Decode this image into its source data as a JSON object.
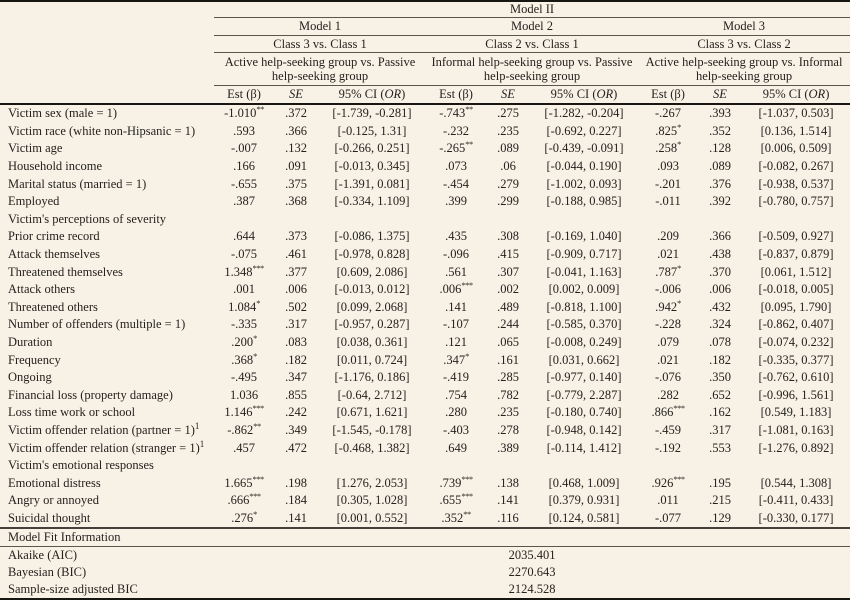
{
  "colors": {
    "background": "#f8f2e6",
    "text": "#24221f",
    "rule_heavy": "#181611",
    "rule_light": "#5a564c"
  },
  "table": {
    "title": "Model II",
    "models": [
      {
        "name": "Model 1",
        "class_comparison": "Class 3 vs. Class 1",
        "group_comparison": "Active help-seeking group vs. Passive help-seeking group"
      },
      {
        "name": "Model 2",
        "class_comparison": "Class 2 vs. Class 1",
        "group_comparison": "Informal help-seeking group vs. Passive help-seeking group"
      },
      {
        "name": "Model 3",
        "class_comparison": "Class 3 vs. Class 2",
        "group_comparison": "Active help-seeking group vs. Informal help-seeking group"
      }
    ],
    "col_headers": {
      "est": "Est (β)",
      "se": "SE",
      "ci_pre": "95% CI (",
      "ci_or": "OR",
      "ci_post": ")"
    },
    "rows": [
      {
        "label": "Victim sex (male = 1)",
        "cells": [
          [
            "-1.010",
            "**",
            ".372",
            "[-1.739, -0.281]"
          ],
          [
            "-.743",
            "**",
            ".275",
            "[-1.282, -0.204]"
          ],
          [
            "-.267",
            "",
            ".393",
            "[-1.037, 0.503]"
          ]
        ]
      },
      {
        "label": "Victim race (white non-Hipsanic = 1)",
        "cells": [
          [
            ".593",
            "",
            ".366",
            "[-0.125, 1.31]"
          ],
          [
            "-.232",
            "",
            ".235",
            "[-0.692, 0.227]"
          ],
          [
            ".825",
            "*",
            ".352",
            "[0.136, 1.514]"
          ]
        ]
      },
      {
        "label": "Victim age",
        "cells": [
          [
            "-.007",
            "",
            ".132",
            "[-0.266, 0.251]"
          ],
          [
            "-.265",
            "**",
            ".089",
            "[-0.439, -0.091]"
          ],
          [
            ".258",
            "*",
            ".128",
            "[0.006, 0.509]"
          ]
        ]
      },
      {
        "label": "Household income",
        "cells": [
          [
            ".166",
            "",
            ".091",
            "[-0.013, 0.345]"
          ],
          [
            ".073",
            "",
            ".06",
            "[-0.044, 0.190]"
          ],
          [
            ".093",
            "",
            ".089",
            "[-0.082, 0.267]"
          ]
        ]
      },
      {
        "label": "Marital status (married = 1)",
        "cells": [
          [
            "-.655",
            "",
            ".375",
            "[-1.391, 0.081]"
          ],
          [
            "-.454",
            "",
            ".279",
            "[-1.002, 0.093]"
          ],
          [
            "-.201",
            "",
            ".376",
            "[-0.938, 0.537]"
          ]
        ]
      },
      {
        "label": "Employed",
        "cells": [
          [
            ".387",
            "",
            ".368",
            "[-0.334, 1.109]"
          ],
          [
            ".399",
            "",
            ".299",
            "[-0.188, 0.985]"
          ],
          [
            "-.011",
            "",
            ".392",
            "[-0.780, 0.757]"
          ]
        ]
      },
      {
        "section": "Victim's perceptions of severity"
      },
      {
        "label": "Prior crime record",
        "cells": [
          [
            ".644",
            "",
            ".373",
            "[-0.086, 1.375]"
          ],
          [
            ".435",
            "",
            ".308",
            "[-0.169, 1.040]"
          ],
          [
            ".209",
            "",
            ".366",
            "[-0.509, 0.927]"
          ]
        ]
      },
      {
        "label": "Attack themselves",
        "cells": [
          [
            "-.075",
            "",
            ".461",
            "[-0.978, 0.828]"
          ],
          [
            "-.096",
            "",
            ".415",
            "[-0.909, 0.717]"
          ],
          [
            ".021",
            "",
            ".438",
            "[-0.837, 0.879]"
          ]
        ]
      },
      {
        "label": "Threatened themselves",
        "cells": [
          [
            "1.348",
            "***",
            ".377",
            "[0.609, 2.086]"
          ],
          [
            ".561",
            "",
            ".307",
            "[-0.041, 1.163]"
          ],
          [
            ".787",
            "*",
            ".370",
            "[0.061, 1.512]"
          ]
        ]
      },
      {
        "label": "Attack others",
        "cells": [
          [
            ".001",
            "",
            ".006",
            "[-0.013, 0.012]"
          ],
          [
            ".006",
            "***",
            ".002",
            "[0.002, 0.009]"
          ],
          [
            "-.006",
            "",
            ".006",
            "[-0.018, 0.005]"
          ]
        ]
      },
      {
        "label": "Threatened others",
        "cells": [
          [
            "1.084",
            "*",
            ".502",
            "[0.099, 2.068]"
          ],
          [
            ".141",
            "",
            ".489",
            "[-0.818, 1.100]"
          ],
          [
            ".942",
            "*",
            ".432",
            "[0.095, 1.790]"
          ]
        ]
      },
      {
        "label": "Number of offenders (multiple = 1)",
        "cells": [
          [
            "-.335",
            "",
            ".317",
            "[-0.957, 0.287]"
          ],
          [
            "-.107",
            "",
            ".244",
            "[-0.585, 0.370]"
          ],
          [
            "-.228",
            "",
            ".324",
            "[-0.862, 0.407]"
          ]
        ]
      },
      {
        "label": "Duration",
        "cells": [
          [
            ".200",
            "*",
            ".083",
            "[0.038, 0.361]"
          ],
          [
            ".121",
            "",
            ".065",
            "[-0.008, 0.249]"
          ],
          [
            ".079",
            "",
            ".078",
            "[-0.074, 0.232]"
          ]
        ]
      },
      {
        "label": "Frequency",
        "cells": [
          [
            ".368",
            "*",
            ".182",
            "[0.011, 0.724]"
          ],
          [
            ".347",
            "*",
            ".161",
            "[0.031, 0.662]"
          ],
          [
            ".021",
            "",
            ".182",
            "[-0.335, 0.377]"
          ]
        ]
      },
      {
        "label": "Ongoing",
        "cells": [
          [
            "-.495",
            "",
            ".347",
            "[-1.176, 0.186]"
          ],
          [
            "-.419",
            "",
            ".285",
            "[-0.977, 0.140]"
          ],
          [
            "-.076",
            "",
            ".350",
            "[-0.762, 0.610]"
          ]
        ]
      },
      {
        "label": "Financial loss (property damage)",
        "cells": [
          [
            "1.036",
            "",
            ".855",
            "[-0.64, 2.712]"
          ],
          [
            ".754",
            "",
            ".782",
            "[-0.779, 2.287]"
          ],
          [
            ".282",
            "",
            ".652",
            "[-0.996, 1.561]"
          ]
        ]
      },
      {
        "label": "Loss time work or school",
        "cells": [
          [
            "1.146",
            "***",
            ".242",
            "[0.671, 1.621]"
          ],
          [
            ".280",
            "",
            ".235",
            "[-0.180, 0.740]"
          ],
          [
            ".866",
            "***",
            ".162",
            "[0.549, 1.183]"
          ]
        ]
      },
      {
        "label": "Victim offender relation (partner = 1)",
        "sup": "1",
        "cells": [
          [
            "-.862",
            "**",
            ".349",
            "[-1.545, -0.178]"
          ],
          [
            "-.403",
            "",
            ".278",
            "[-0.948, 0.142]"
          ],
          [
            "-.459",
            "",
            ".317",
            "[-1.081, 0.163]"
          ]
        ]
      },
      {
        "label": "Victim offender relation (stranger = 1)",
        "sup": "1",
        "cells": [
          [
            ".457",
            "",
            ".472",
            "[-0.468, 1.382]"
          ],
          [
            ".649",
            "",
            ".389",
            "[-0.114, 1.412]"
          ],
          [
            "-.192",
            "",
            ".553",
            "[-1.276, 0.892]"
          ]
        ]
      },
      {
        "section": "Victim's emotional responses"
      },
      {
        "label": "Emotional distress",
        "cells": [
          [
            "1.665",
            "***",
            ".198",
            "[1.276, 2.053]"
          ],
          [
            ".739",
            "***",
            ".138",
            "[0.468, 1.009]"
          ],
          [
            ".926",
            "***",
            ".195",
            "[0.544, 1.308]"
          ]
        ]
      },
      {
        "label": "Angry or annoyed",
        "cells": [
          [
            ".666",
            "***",
            ".184",
            "[0.305, 1.028]"
          ],
          [
            ".655",
            "***",
            ".141",
            "[0.379, 0.931]"
          ],
          [
            ".011",
            "",
            ".215",
            "[-0.411, 0.433]"
          ]
        ]
      },
      {
        "label": "Suicidal thought",
        "cells": [
          [
            ".276",
            "*",
            ".141",
            "[0.001, 0.552]"
          ],
          [
            ".352",
            "**",
            ".116",
            "[0.124, 0.581]"
          ],
          [
            "-.077",
            "",
            ".129",
            "[-0.330, 0.177]"
          ]
        ]
      }
    ],
    "fit": {
      "header": "Model Fit Information",
      "rows": [
        {
          "label": "Akaike (AIC)",
          "value": "2035.401"
        },
        {
          "label": "Bayesian (BIC)",
          "value": "2270.643"
        },
        {
          "label": "Sample-size adjusted BIC",
          "value": "2124.528"
        }
      ]
    }
  }
}
